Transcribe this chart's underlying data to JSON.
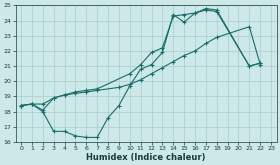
{
  "xlabel": "Humidex (Indice chaleur)",
  "ylabel": "",
  "xlim": [
    -0.5,
    23.5
  ],
  "ylim": [
    16,
    25
  ],
  "yticks": [
    16,
    17,
    18,
    19,
    20,
    21,
    22,
    23,
    24,
    25
  ],
  "xticks": [
    0,
    1,
    2,
    3,
    4,
    5,
    6,
    7,
    8,
    9,
    10,
    11,
    12,
    13,
    14,
    15,
    16,
    17,
    18,
    19,
    20,
    21,
    22,
    23
  ],
  "bg_color": "#cce8e8",
  "grid_color": "#b0d0d0",
  "line_color": "#1a6e6a",
  "lines": [
    {
      "x": [
        0,
        1,
        2,
        3,
        4,
        5,
        6,
        7,
        8,
        9,
        10,
        11,
        12,
        13,
        14,
        15,
        16,
        17,
        18,
        21,
        22
      ],
      "y": [
        18.4,
        18.5,
        18.0,
        16.7,
        16.7,
        16.4,
        16.3,
        16.3,
        17.6,
        18.4,
        19.7,
        20.8,
        21.1,
        21.9,
        24.4,
        23.9,
        24.5,
        24.8,
        24.7,
        21.0,
        21.2
      ]
    },
    {
      "x": [
        0,
        1,
        2,
        3,
        4,
        5,
        6,
        7,
        9,
        10,
        11,
        12,
        13,
        14,
        15,
        16,
        17,
        18,
        21,
        22
      ],
      "y": [
        18.4,
        18.5,
        18.5,
        18.9,
        19.1,
        19.2,
        19.3,
        19.4,
        19.6,
        19.8,
        20.1,
        20.5,
        20.9,
        21.3,
        21.7,
        22.0,
        22.5,
        22.9,
        23.6,
        21.1
      ]
    },
    {
      "x": [
        0,
        1,
        2,
        3,
        4,
        5,
        6,
        7,
        10,
        11,
        12,
        13,
        14,
        15,
        16,
        17,
        18,
        21,
        22
      ],
      "y": [
        18.4,
        18.5,
        18.1,
        18.9,
        19.1,
        19.3,
        19.4,
        19.5,
        20.5,
        21.1,
        21.9,
        22.2,
        24.3,
        24.4,
        24.5,
        24.7,
        24.6,
        21.0,
        21.2
      ]
    }
  ]
}
